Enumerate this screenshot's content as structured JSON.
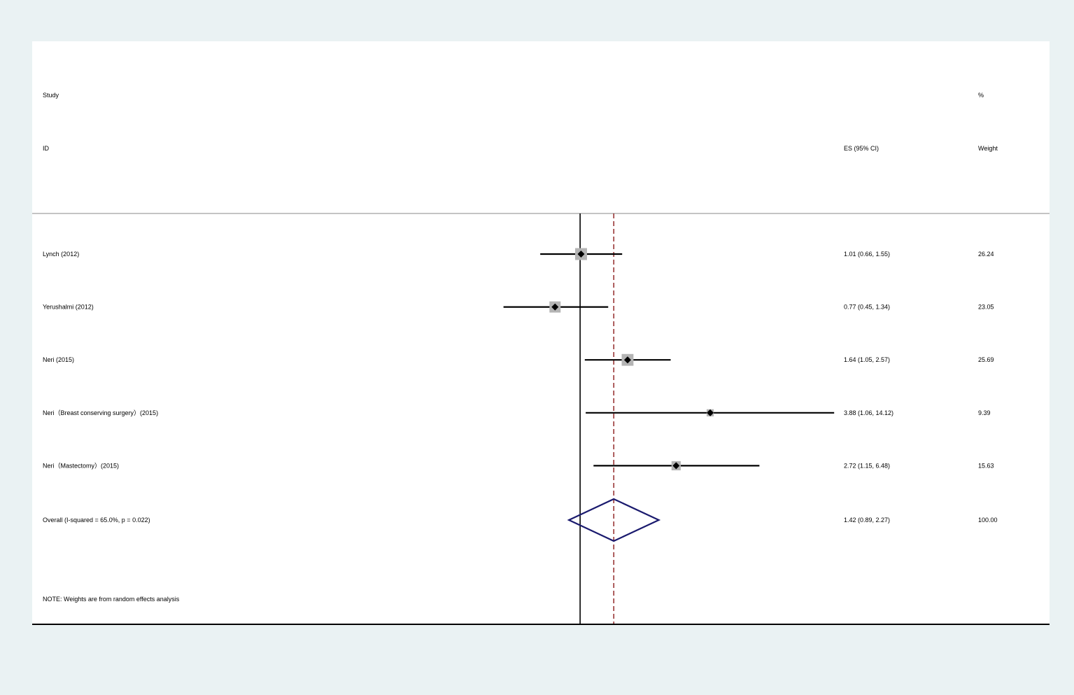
{
  "chart_data": {
    "type": "forest",
    "columns": {
      "study_header_line1": "Study",
      "study_header_line2": "ID",
      "es_header": "ES (95% CI)",
      "weight_header_line1": "%",
      "weight_header_line2": "Weight"
    },
    "x_scale": "log",
    "xlim": [
      0.0708,
      14.1
    ],
    "x_ticks": [
      {
        "value": 0.0708,
        "label": ".0708"
      },
      {
        "value": 1,
        "label": "1"
      },
      {
        "value": 14.1,
        "label": "14.1"
      }
    ],
    "null_line": 1,
    "overall_line": 1.42,
    "studies": [
      {
        "label": "Lynch (2012)",
        "es": 1.01,
        "lo": 0.66,
        "hi": 1.55,
        "es_text": "1.01 (0.66, 1.55)",
        "weight": 26.24,
        "weight_text": "26.24"
      },
      {
        "label": "Yerushalmi (2012)",
        "es": 0.77,
        "lo": 0.45,
        "hi": 1.34,
        "es_text": "0.77 (0.45, 1.34)",
        "weight": 23.05,
        "weight_text": "23.05"
      },
      {
        "label": "Neri (2015)",
        "es": 1.64,
        "lo": 1.05,
        "hi": 2.57,
        "es_text": "1.64 (1.05, 2.57)",
        "weight": 25.69,
        "weight_text": "25.69"
      },
      {
        "label": "Neri（Breast conserving surgery）(2015)",
        "es": 3.88,
        "lo": 1.06,
        "hi": 14.12,
        "es_text": "3.88 (1.06, 14.12)",
        "weight": 9.39,
        "weight_text": "9.39"
      },
      {
        "label": "Neri（Mastectomy）(2015)",
        "es": 2.72,
        "lo": 1.15,
        "hi": 6.48,
        "es_text": "2.72 (1.15, 6.48)",
        "weight": 15.63,
        "weight_text": "15.63"
      }
    ],
    "overall": {
      "label": "Overall  (I-squared = 65.0%, p = 0.022)",
      "es": 1.42,
      "lo": 0.89,
      "hi": 2.27,
      "es_text": "1.42 (0.89, 2.27)",
      "weight_text": "100.00"
    },
    "note": "NOTE: Weights are from random effects analysis",
    "colors": {
      "background": "#eaf2f3",
      "panel": "#ffffff",
      "ci_line": "#000000",
      "weight_box": "#b4b4b4",
      "point": "#000000",
      "null_line": "#000000",
      "overall_line": "#8b1a1a",
      "diamond": "#1a1a6e",
      "separator": "#b0b0b0"
    }
  }
}
